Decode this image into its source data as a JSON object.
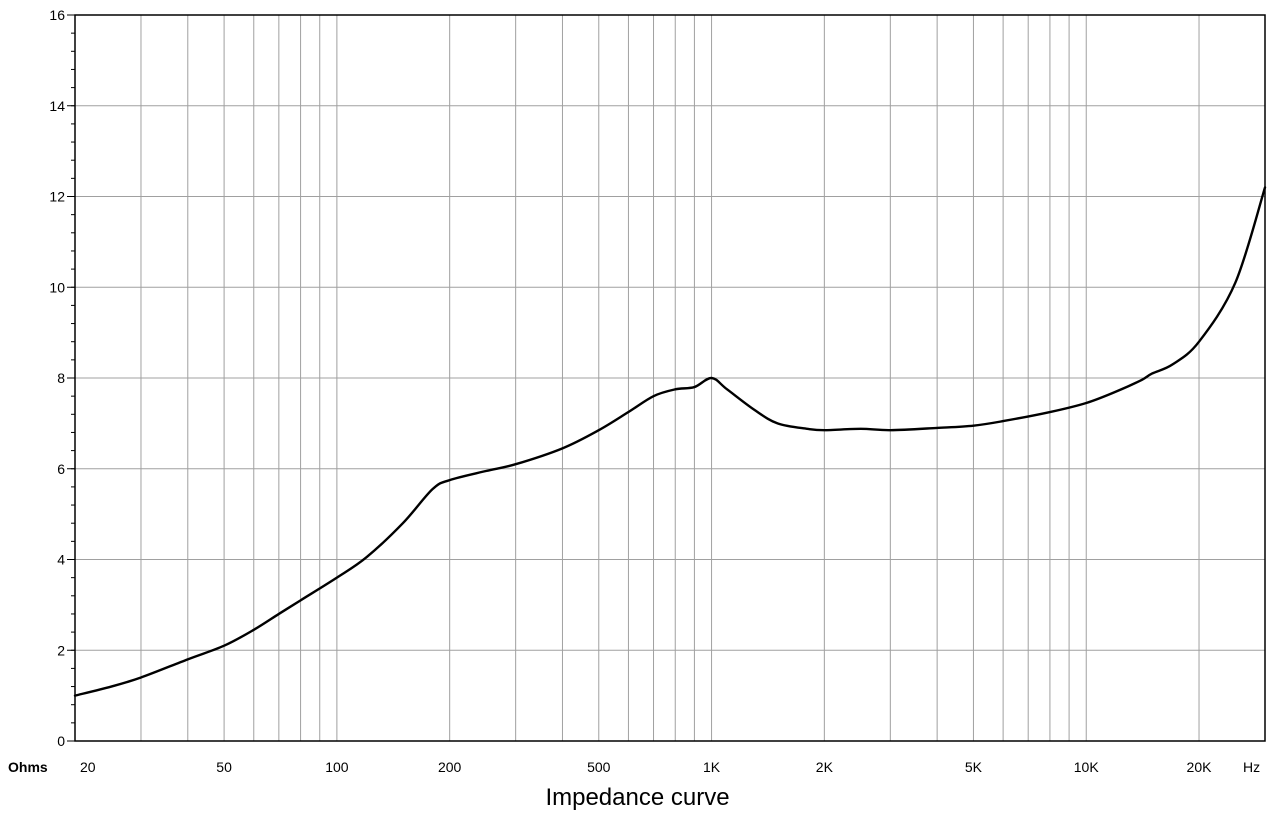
{
  "caption": "Impedance curve",
  "chart_data": {
    "type": "line",
    "title": "Impedance curve",
    "ylabel": "Ohms",
    "xlabel": "Hz",
    "x_scale": "log",
    "xlim": [
      20,
      30000
    ],
    "ylim": [
      0,
      16
    ],
    "grid": true,
    "yticks": [
      {
        "value": 0,
        "label": "0"
      },
      {
        "value": 2,
        "label": "2"
      },
      {
        "value": 4,
        "label": "4"
      },
      {
        "value": 6,
        "label": "6"
      },
      {
        "value": 8,
        "label": "8"
      },
      {
        "value": 10,
        "label": "10"
      },
      {
        "value": 12,
        "label": "12"
      },
      {
        "value": 14,
        "label": "14"
      },
      {
        "value": 16,
        "label": "16"
      }
    ],
    "xticks": [
      {
        "value": 20,
        "label": "20"
      },
      {
        "value": 50,
        "label": "50"
      },
      {
        "value": 100,
        "label": "100"
      },
      {
        "value": 200,
        "label": "200"
      },
      {
        "value": 500,
        "label": "500"
      },
      {
        "value": 1000,
        "label": "1K"
      },
      {
        "value": 2000,
        "label": "2K"
      },
      {
        "value": 5000,
        "label": "5K"
      },
      {
        "value": 10000,
        "label": "10K"
      },
      {
        "value": 20000,
        "label": "20K"
      }
    ],
    "line_color": "#000000",
    "grid_color": "#a0a0a0",
    "series": [
      {
        "x": [
          20,
          25,
          30,
          40,
          50,
          60,
          70,
          80,
          100,
          120,
          150,
          180,
          200,
          250,
          300,
          400,
          500,
          600,
          700,
          800,
          900,
          1000,
          1100,
          1300,
          1500,
          1800,
          2000,
          2500,
          3000,
          4000,
          5000,
          6000,
          8000,
          10000,
          12000,
          14000,
          15000,
          17000,
          20000,
          25000,
          30000
        ],
        "y": [
          1.0,
          1.2,
          1.4,
          1.8,
          2.1,
          2.45,
          2.8,
          3.1,
          3.6,
          4.05,
          4.8,
          5.55,
          5.75,
          5.95,
          6.1,
          6.45,
          6.85,
          7.25,
          7.6,
          7.75,
          7.8,
          8.0,
          7.75,
          7.3,
          7.0,
          6.88,
          6.85,
          6.88,
          6.85,
          6.9,
          6.95,
          7.05,
          7.25,
          7.45,
          7.7,
          7.95,
          8.1,
          8.3,
          8.8,
          10.1,
          12.2
        ]
      }
    ]
  }
}
